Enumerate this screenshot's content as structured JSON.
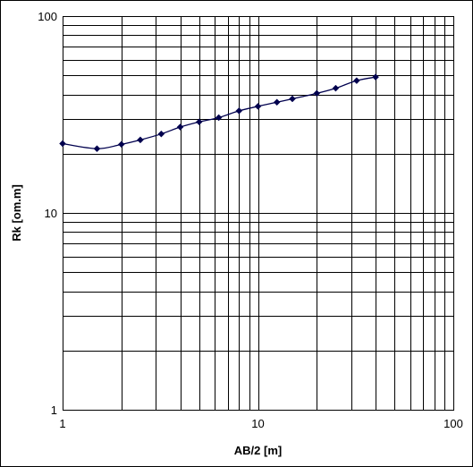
{
  "chart_data": {
    "type": "line",
    "title": "",
    "xlabel": "AB/2 [m]",
    "ylabel": "Rk [om.m]",
    "xscale": "log",
    "yscale": "log",
    "xlim": [
      1,
      100
    ],
    "ylim": [
      1,
      100
    ],
    "grid": true,
    "legend": "none",
    "x_ticks": [
      "1",
      "10",
      "100"
    ],
    "y_ticks": [
      "1",
      "10",
      "100"
    ],
    "series": [
      {
        "x": [
          1,
          1.5,
          2,
          2.5,
          3.2,
          4,
          5,
          6.3,
          8,
          10,
          12.5,
          15,
          20,
          25,
          32,
          40
        ],
        "y": [
          22.5,
          21.2,
          22.3,
          23.5,
          25.2,
          27.3,
          29,
          30.5,
          33,
          34.8,
          36.5,
          38,
          40.5,
          43,
          47,
          49
        ],
        "color": "#00004e",
        "marker": "diamond"
      }
    ]
  }
}
